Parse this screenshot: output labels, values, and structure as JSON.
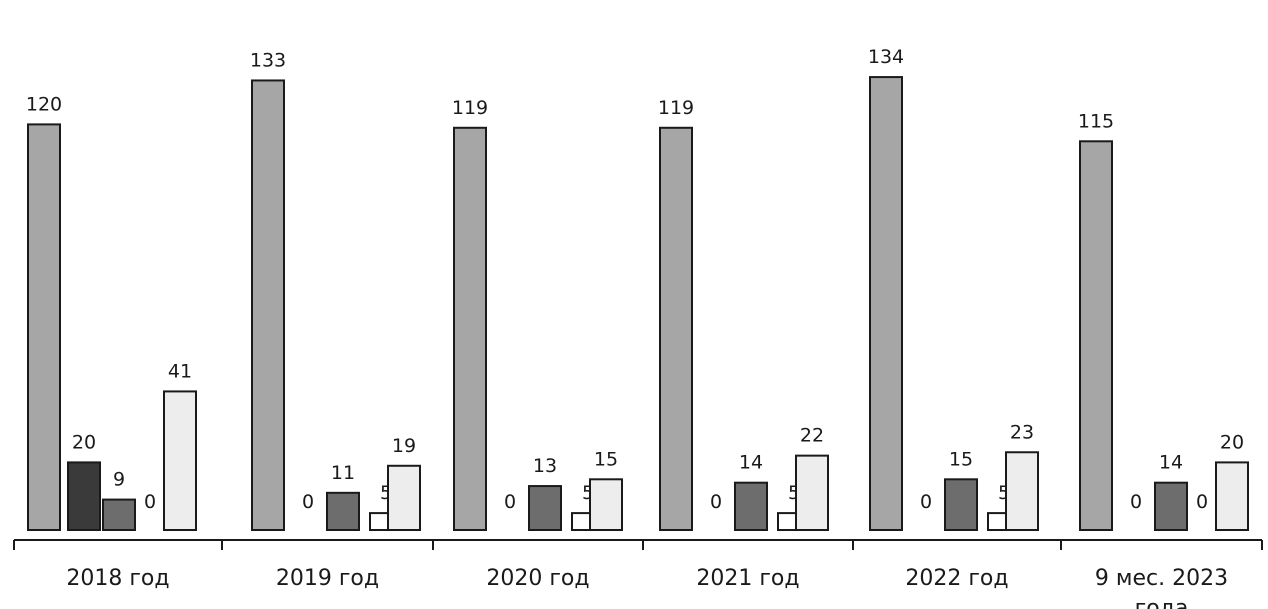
{
  "chart_data": {
    "type": "bar",
    "categories": [
      [
        "2018 год"
      ],
      [
        "2019 год"
      ],
      [
        "2020 год"
      ],
      [
        "2021 год"
      ],
      [
        "2022 год"
      ],
      [
        "9 мес. 2023",
        "года"
      ]
    ],
    "series": [
      {
        "values": [
          120,
          133,
          119,
          119,
          134,
          115
        ],
        "color": "#a6a6a6"
      },
      {
        "values": [
          20,
          0,
          0,
          0,
          0,
          0
        ],
        "color": "#3a3a3a"
      },
      {
        "values": [
          9,
          11,
          13,
          14,
          15,
          14
        ],
        "color": "#6d6d6d"
      },
      {
        "values": [
          0,
          5,
          5,
          5,
          5,
          0
        ],
        "color": "#ffffff"
      },
      {
        "values": [
          41,
          19,
          15,
          22,
          23,
          20
        ],
        "color": "#ededed"
      }
    ],
    "ylim": [
      0,
      140
    ],
    "grid": false,
    "legend": "none"
  }
}
